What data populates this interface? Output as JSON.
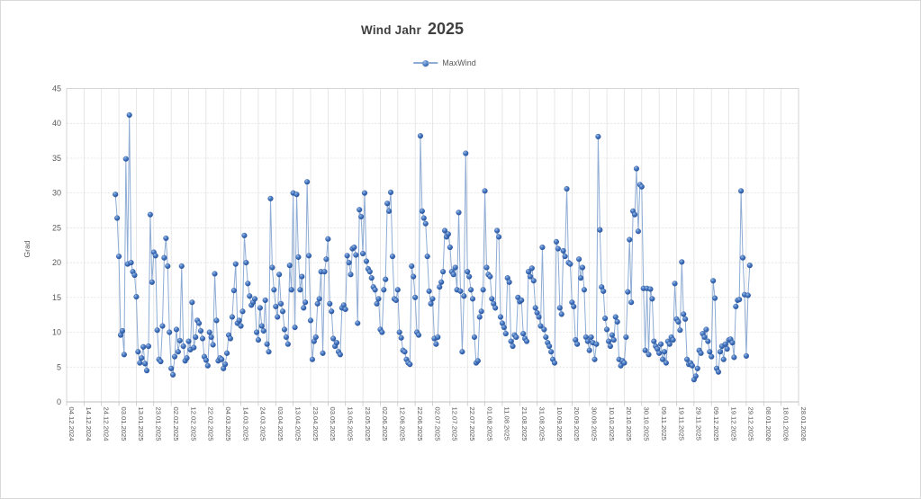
{
  "title": {
    "prefix": "Wind Jahr",
    "year": "2025"
  },
  "legend": {
    "series_label": "MaxWind"
  },
  "y_axis": {
    "title": "Grad",
    "tick_labels": [
      "0",
      "5",
      "10",
      "15",
      "20",
      "25",
      "30",
      "35",
      "40",
      "45"
    ]
  },
  "x_axis": {
    "tick_labels": [
      "04.12.2024",
      "14.12.2024",
      "24.12.2024",
      "03.01.2025",
      "13.01.2025",
      "23.01.2025",
      "02.02.2025",
      "12.02.2025",
      "22.02.2025",
      "04.03.2025",
      "14.03.2025",
      "24.03.2025",
      "03.04.2025",
      "13.04.2025",
      "23.04.2025",
      "03.05.2025",
      "13.05.2025",
      "23.05.2025",
      "02.06.2025",
      "12.06.2025",
      "22.06.2025",
      "02.07.2025",
      "12.07.2025",
      "22.07.2025",
      "01.08.2025",
      "11.08.2025",
      "21.08.2025",
      "31.08.2025",
      "10.09.2025",
      "20.09.2025",
      "30.09.2025",
      "10.10.2025",
      "20.10.2025",
      "30.10.2025",
      "09.11.2025",
      "19.11.2025",
      "29.11.2025",
      "09.12.2025",
      "19.12.2025",
      "29.12.2025",
      "08.01.2026",
      "18.01.2026",
      "28.01.2026"
    ]
  },
  "colors": {
    "marker": "#4472C4",
    "marker_highlight": "#9DBCE8",
    "marker_dark": "#27519B",
    "line": "#8FACD4",
    "grid": "#DDDDDD",
    "border": "#CFCFCF",
    "axis_text": "#595959",
    "title_text": "#404040"
  },
  "chart_data": {
    "type": "line",
    "title": "Wind Jahr 2025",
    "xlabel": "",
    "ylabel": "Grad",
    "ylim": [
      0,
      45
    ],
    "y_step": 5,
    "grid": true,
    "legend_position": "top-center",
    "x_tick_interval_days": 10,
    "x_tick_labels": [
      "04.12.2024",
      "14.12.2024",
      "24.12.2024",
      "03.01.2025",
      "13.01.2025",
      "23.01.2025",
      "02.02.2025",
      "12.02.2025",
      "22.02.2025",
      "04.03.2025",
      "14.03.2025",
      "24.03.2025",
      "03.04.2025",
      "13.04.2025",
      "23.04.2025",
      "03.05.2025",
      "13.05.2025",
      "23.05.2025",
      "02.06.2025",
      "12.06.2025",
      "22.06.2025",
      "02.07.2025",
      "12.07.2025",
      "22.07.2025",
      "01.08.2025",
      "11.08.2025",
      "21.08.2025",
      "31.08.2025",
      "10.09.2025",
      "20.09.2025",
      "30.09.2025",
      "10.10.2025",
      "20.10.2025",
      "30.10.2025",
      "09.11.2025",
      "19.11.2025",
      "29.11.2025",
      "09.12.2025",
      "19.12.2025",
      "29.12.2025",
      "08.01.2026",
      "18.01.2026",
      "28.01.2026"
    ],
    "series": [
      {
        "name": "MaxWind",
        "start_date": "01.01.2025",
        "frequency": "daily",
        "values": [
          29.8,
          26.4,
          20.9,
          9.6,
          10.2,
          6.8,
          34.9,
          19.8,
          41.2,
          20.0,
          18.7,
          18.2,
          15.1,
          7.2,
          5.6,
          6.3,
          7.9,
          5.5,
          4.5,
          8.0,
          26.9,
          17.2,
          21.5,
          21.0,
          10.3,
          6.1,
          5.8,
          10.9,
          20.7,
          23.5,
          19.5,
          10.0,
          4.8,
          3.9,
          6.5,
          10.4,
          7.2,
          8.8,
          19.5,
          8.0,
          5.9,
          6.3,
          8.7,
          7.5,
          14.3,
          7.8,
          9.3,
          11.7,
          11.3,
          10.2,
          9.1,
          6.5,
          6.0,
          5.2,
          10.0,
          9.3,
          8.2,
          18.4,
          11.7,
          5.9,
          6.3,
          6.1,
          4.8,
          5.4,
          7.0,
          9.6,
          9.1,
          12.2,
          16.0,
          19.8,
          11.3,
          11.7,
          10.9,
          13.0,
          23.9,
          20.0,
          17.0,
          15.2,
          13.9,
          14.3,
          14.8,
          10.0,
          8.9,
          13.5,
          10.9,
          10.2,
          14.6,
          8.3,
          7.2,
          29.2,
          19.3,
          16.1,
          13.7,
          12.2,
          18.3,
          14.1,
          13.0,
          10.4,
          9.3,
          8.3,
          19.6,
          16.1,
          30.0,
          10.7,
          29.8,
          20.8,
          16.1,
          18.0,
          13.5,
          14.3,
          31.6,
          21.0,
          11.7,
          6.1,
          8.7,
          9.3,
          14.1,
          14.8,
          18.7,
          7.0,
          18.7,
          20.5,
          23.4,
          14.1,
          13.0,
          9.1,
          8.0,
          8.5,
          7.2,
          6.8,
          13.5,
          13.9,
          13.3,
          21.0,
          20.0,
          18.3,
          22.0,
          22.2,
          21.1,
          11.3,
          27.6,
          26.6,
          21.3,
          30.0,
          20.2,
          19.1,
          18.7,
          17.8,
          16.5,
          16.1,
          14.1,
          14.8,
          10.4,
          10.0,
          16.1,
          17.6,
          28.5,
          27.4,
          30.1,
          20.9,
          14.8,
          14.6,
          16.1,
          10.0,
          9.2,
          7.4,
          7.2,
          6.1,
          5.6,
          5.4,
          19.5,
          18.0,
          15.0,
          10.0,
          9.6,
          38.2,
          27.4,
          26.4,
          25.6,
          20.9,
          15.9,
          14.1,
          14.8,
          9.1,
          8.3,
          9.3,
          16.5,
          17.2,
          18.7,
          24.6,
          23.7,
          24.1,
          22.2,
          18.7,
          18.3,
          19.3,
          16.1,
          27.2,
          15.9,
          7.2,
          15.2,
          35.7,
          18.7,
          18.0,
          16.1,
          14.8,
          9.3,
          5.6,
          5.9,
          12.2,
          13.0,
          16.1,
          30.3,
          19.3,
          18.3,
          18.0,
          14.8,
          14.1,
          13.5,
          24.6,
          23.7,
          12.2,
          11.3,
          10.7,
          9.8,
          17.8,
          17.2,
          8.7,
          8.0,
          9.6,
          9.3,
          15.0,
          14.4,
          14.6,
          9.8,
          9.1,
          8.7,
          18.7,
          18.0,
          19.2,
          17.4,
          13.5,
          12.8,
          12.2,
          10.9,
          22.2,
          10.4,
          9.3,
          8.5,
          8.0,
          7.2,
          6.1,
          5.6,
          23.0,
          22.0,
          13.5,
          12.6,
          21.7,
          20.9,
          30.6,
          20.0,
          19.8,
          14.3,
          13.7,
          8.9,
          8.3,
          20.5,
          17.8,
          19.3,
          16.1,
          9.3,
          8.7,
          7.4,
          9.3,
          8.5,
          6.1,
          8.3,
          38.1,
          24.7,
          16.5,
          15.9,
          12.0,
          10.4,
          8.7,
          8.0,
          9.6,
          8.9,
          12.2,
          11.5,
          6.1,
          5.2,
          5.9,
          5.6,
          9.3,
          15.8,
          23.3,
          14.3,
          27.4,
          26.9,
          33.5,
          24.5,
          31.2,
          30.9,
          16.3,
          7.4,
          16.3,
          6.8,
          16.2,
          14.8,
          8.7,
          8.0,
          7.6,
          7.0,
          8.3,
          6.1,
          7.2,
          5.6,
          8.7,
          8.3,
          9.3,
          8.9,
          17.0,
          11.9,
          11.5,
          10.3,
          20.1,
          12.6,
          11.9,
          6.1,
          5.4,
          5.6,
          5.2,
          3.2,
          3.7,
          4.8,
          7.4,
          7.0,
          9.8,
          9.3,
          10.4,
          8.7,
          7.2,
          6.5,
          17.4,
          14.9,
          4.8,
          4.3,
          7.2,
          8.0,
          6.1,
          8.3,
          7.6,
          8.9,
          9.0,
          8.5,
          6.4,
          13.7,
          14.6,
          14.7,
          30.3,
          20.7,
          15.4,
          6.6,
          15.3,
          19.6
        ]
      }
    ]
  }
}
